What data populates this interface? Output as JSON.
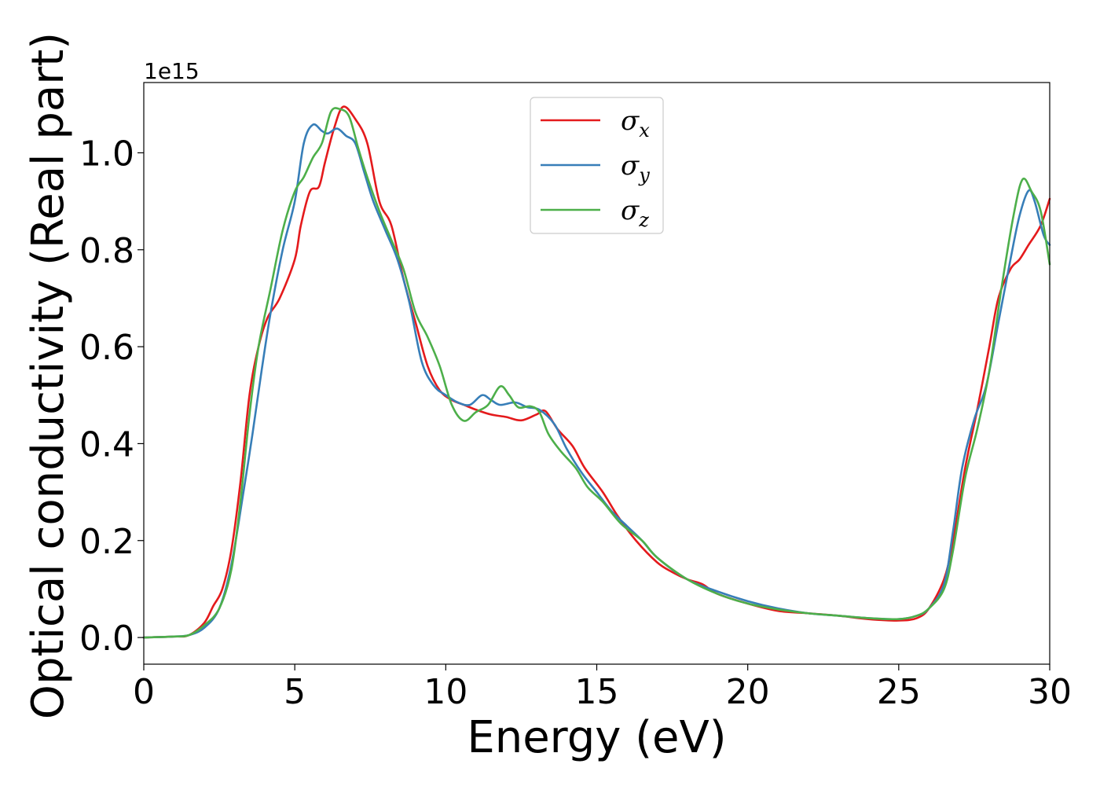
{
  "chart_data": {
    "type": "line",
    "xlabel": "Energy (eV)",
    "ylabel": "Optical conductivity (Real part)",
    "y_offset_label": "1e15",
    "xlim": [
      0,
      30
    ],
    "ylim": [
      -0.055,
      1.145
    ],
    "x_ticks": [
      0,
      5,
      10,
      15,
      20,
      25,
      30
    ],
    "x_tick_labels": [
      "0",
      "5",
      "10",
      "15",
      "20",
      "25",
      "30"
    ],
    "y_ticks": [
      0.0,
      0.2,
      0.4,
      0.6,
      0.8,
      1.0
    ],
    "y_tick_labels": [
      "0.0",
      "0.2",
      "0.4",
      "0.6",
      "0.8",
      "1.0"
    ],
    "grid": false,
    "legend_position": "top-center",
    "series": [
      {
        "name": "σx",
        "symbol": "σ",
        "subscript": "x",
        "color": "#e41a1c",
        "points": [
          [
            0,
            0
          ],
          [
            1,
            0.002
          ],
          [
            1.5,
            0.005
          ],
          [
            2,
            0.03
          ],
          [
            2.3,
            0.065
          ],
          [
            2.6,
            0.1
          ],
          [
            2.9,
            0.18
          ],
          [
            3.2,
            0.32
          ],
          [
            3.5,
            0.5
          ],
          [
            3.8,
            0.6
          ],
          [
            4.1,
            0.66
          ],
          [
            4.5,
            0.7
          ],
          [
            5,
            0.78
          ],
          [
            5.2,
            0.85
          ],
          [
            5.5,
            0.92
          ],
          [
            5.8,
            0.93
          ],
          [
            6,
            0.98
          ],
          [
            6.3,
            1.05
          ],
          [
            6.6,
            1.095
          ],
          [
            7,
            1.07
          ],
          [
            7.4,
            1.02
          ],
          [
            7.8,
            0.9
          ],
          [
            8.2,
            0.85
          ],
          [
            8.6,
            0.74
          ],
          [
            9,
            0.65
          ],
          [
            9.4,
            0.56
          ],
          [
            9.8,
            0.51
          ],
          [
            10.2,
            0.49
          ],
          [
            10.6,
            0.48
          ],
          [
            11,
            0.47
          ],
          [
            11.5,
            0.46
          ],
          [
            12,
            0.455
          ],
          [
            12.5,
            0.448
          ],
          [
            13,
            0.46
          ],
          [
            13.3,
            0.467
          ],
          [
            13.7,
            0.43
          ],
          [
            14.2,
            0.395
          ],
          [
            14.6,
            0.35
          ],
          [
            15.2,
            0.3
          ],
          [
            15.7,
            0.25
          ],
          [
            16.3,
            0.2
          ],
          [
            17,
            0.155
          ],
          [
            17.5,
            0.135
          ],
          [
            18,
            0.12
          ],
          [
            18.5,
            0.11
          ],
          [
            19,
            0.09
          ],
          [
            20,
            0.07
          ],
          [
            21,
            0.055
          ],
          [
            22,
            0.05
          ],
          [
            23,
            0.045
          ],
          [
            24,
            0.038
          ],
          [
            25,
            0.035
          ],
          [
            25.6,
            0.04
          ],
          [
            26,
            0.06
          ],
          [
            26.5,
            0.12
          ],
          [
            26.8,
            0.2
          ],
          [
            27.2,
            0.35
          ],
          [
            27.6,
            0.47
          ],
          [
            28,
            0.6
          ],
          [
            28.3,
            0.7
          ],
          [
            28.7,
            0.76
          ],
          [
            29,
            0.78
          ],
          [
            29.3,
            0.81
          ],
          [
            29.7,
            0.85
          ],
          [
            30,
            0.905
          ]
        ]
      },
      {
        "name": "σy",
        "symbol": "σ",
        "subscript": "y",
        "color": "#377eb8",
        "points": [
          [
            0,
            0
          ],
          [
            1,
            0.002
          ],
          [
            1.5,
            0.005
          ],
          [
            2,
            0.02
          ],
          [
            2.5,
            0.06
          ],
          [
            2.9,
            0.15
          ],
          [
            3.3,
            0.3
          ],
          [
            3.6,
            0.42
          ],
          [
            3.9,
            0.55
          ],
          [
            4.2,
            0.67
          ],
          [
            4.6,
            0.8
          ],
          [
            5,
            0.9
          ],
          [
            5.3,
            1.02
          ],
          [
            5.6,
            1.058
          ],
          [
            5.9,
            1.045
          ],
          [
            6.1,
            1.04
          ],
          [
            6.4,
            1.05
          ],
          [
            6.7,
            1.035
          ],
          [
            7,
            1.02
          ],
          [
            7.3,
            0.96
          ],
          [
            7.6,
            0.9
          ],
          [
            8,
            0.84
          ],
          [
            8.4,
            0.78
          ],
          [
            8.8,
            0.69
          ],
          [
            9.2,
            0.57
          ],
          [
            9.6,
            0.52
          ],
          [
            10,
            0.5
          ],
          [
            10.4,
            0.485
          ],
          [
            10.8,
            0.48
          ],
          [
            11.2,
            0.5
          ],
          [
            11.5,
            0.49
          ],
          [
            11.8,
            0.48
          ],
          [
            12.3,
            0.485
          ],
          [
            12.7,
            0.475
          ],
          [
            13.1,
            0.47
          ],
          [
            13.6,
            0.44
          ],
          [
            14,
            0.39
          ],
          [
            14.5,
            0.34
          ],
          [
            15,
            0.3
          ],
          [
            15.5,
            0.26
          ],
          [
            16,
            0.23
          ],
          [
            16.5,
            0.2
          ],
          [
            17,
            0.165
          ],
          [
            18,
            0.12
          ],
          [
            19,
            0.095
          ],
          [
            20,
            0.075
          ],
          [
            21,
            0.06
          ],
          [
            22,
            0.05
          ],
          [
            23,
            0.045
          ],
          [
            24,
            0.04
          ],
          [
            25,
            0.038
          ],
          [
            25.6,
            0.045
          ],
          [
            26,
            0.06
          ],
          [
            26.5,
            0.11
          ],
          [
            26.8,
            0.22
          ],
          [
            27.1,
            0.35
          ],
          [
            27.5,
            0.45
          ],
          [
            27.9,
            0.52
          ],
          [
            28.3,
            0.65
          ],
          [
            28.7,
            0.78
          ],
          [
            29,
            0.87
          ],
          [
            29.3,
            0.922
          ],
          [
            29.5,
            0.9
          ],
          [
            29.8,
            0.83
          ],
          [
            30,
            0.81
          ]
        ]
      },
      {
        "name": "σz",
        "symbol": "σ",
        "subscript": "z",
        "color": "#4daf4a",
        "points": [
          [
            0,
            0
          ],
          [
            1,
            0.002
          ],
          [
            1.5,
            0.005
          ],
          [
            2,
            0.025
          ],
          [
            2.5,
            0.06
          ],
          [
            2.9,
            0.14
          ],
          [
            3.2,
            0.28
          ],
          [
            3.5,
            0.46
          ],
          [
            3.8,
            0.6
          ],
          [
            4.2,
            0.72
          ],
          [
            4.6,
            0.84
          ],
          [
            5,
            0.92
          ],
          [
            5.3,
            0.95
          ],
          [
            5.6,
            0.99
          ],
          [
            5.9,
            1.02
          ],
          [
            6.2,
            1.085
          ],
          [
            6.5,
            1.09
          ],
          [
            6.8,
            1.075
          ],
          [
            7.1,
            1.01
          ],
          [
            7.4,
            0.95
          ],
          [
            7.8,
            0.88
          ],
          [
            8.2,
            0.82
          ],
          [
            8.6,
            0.76
          ],
          [
            9,
            0.67
          ],
          [
            9.4,
            0.62
          ],
          [
            9.8,
            0.56
          ],
          [
            10.2,
            0.48
          ],
          [
            10.6,
            0.447
          ],
          [
            11,
            0.465
          ],
          [
            11.4,
            0.48
          ],
          [
            11.8,
            0.518
          ],
          [
            12.1,
            0.5
          ],
          [
            12.4,
            0.475
          ],
          [
            12.8,
            0.477
          ],
          [
            13.1,
            0.465
          ],
          [
            13.4,
            0.42
          ],
          [
            13.8,
            0.385
          ],
          [
            14.3,
            0.35
          ],
          [
            14.7,
            0.31
          ],
          [
            15.2,
            0.28
          ],
          [
            15.8,
            0.235
          ],
          [
            16.5,
            0.2
          ],
          [
            17,
            0.165
          ],
          [
            18,
            0.12
          ],
          [
            19,
            0.09
          ],
          [
            20,
            0.07
          ],
          [
            21,
            0.058
          ],
          [
            22,
            0.05
          ],
          [
            23,
            0.045
          ],
          [
            24,
            0.04
          ],
          [
            25,
            0.038
          ],
          [
            25.6,
            0.045
          ],
          [
            26,
            0.06
          ],
          [
            26.5,
            0.1
          ],
          [
            26.8,
            0.18
          ],
          [
            27.2,
            0.33
          ],
          [
            27.6,
            0.43
          ],
          [
            28,
            0.55
          ],
          [
            28.4,
            0.72
          ],
          [
            28.8,
            0.87
          ],
          [
            29.1,
            0.945
          ],
          [
            29.4,
            0.92
          ],
          [
            29.7,
            0.88
          ],
          [
            30,
            0.77
          ]
        ]
      }
    ]
  }
}
